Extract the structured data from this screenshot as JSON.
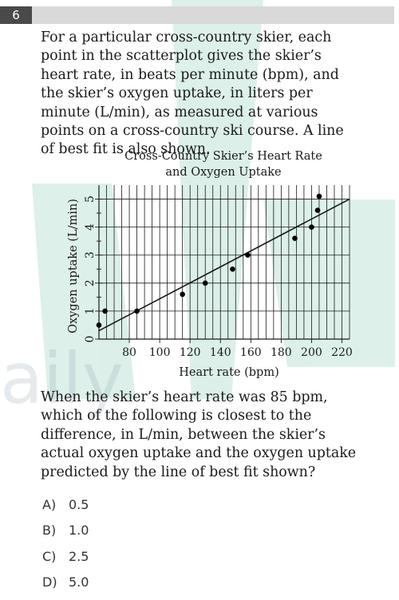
{
  "question_number": "6",
  "stem": "For a particular cross-country skier, each point in the scatterplot gives the skier’s heart rate, in beats per minute (bpm), and the skier’s oxygen uptake, in liters per minute (L/min), as measured at various points on a cross-country ski course. A line of best fit is also shown.",
  "chart_data": {
    "type": "scatter",
    "title_lines": [
      "Cross-Country Skier’s Heart Rate",
      "and Oxygen Uptake"
    ],
    "xlabel": "Heart rate (bpm)",
    "ylabel": "Oxygen uptake (L/min)",
    "x_ticks": [
      "80",
      "100",
      "120",
      "140",
      "160",
      "180",
      "200",
      "220"
    ],
    "y_ticks": [
      "0",
      "1",
      "2",
      "3",
      "4",
      "5"
    ],
    "xlim": [
      60,
      225
    ],
    "ylim": [
      0,
      5.5
    ],
    "grid": true,
    "points": [
      {
        "x": 60,
        "y": 0.5
      },
      {
        "x": 64,
        "y": 1.0
      },
      {
        "x": 85,
        "y": 1.0
      },
      {
        "x": 115,
        "y": 1.6
      },
      {
        "x": 130,
        "y": 2.0
      },
      {
        "x": 148,
        "y": 2.5
      },
      {
        "x": 158,
        "y": 3.0
      },
      {
        "x": 189,
        "y": 3.6
      },
      {
        "x": 200,
        "y": 4.0
      },
      {
        "x": 204,
        "y": 4.6
      },
      {
        "x": 205,
        "y": 5.1
      }
    ],
    "line_of_best_fit": {
      "x": [
        60,
        225
      ],
      "y": [
        0.3,
        5.0
      ]
    }
  },
  "question": "When the skier’s heart rate was 85 bpm, which of the following is closest to the difference, in L/min, between the skier’s actual oxygen uptake and the oxygen uptake predicted by the line of best fit shown?",
  "choices": [
    {
      "letter": "A)",
      "value": "0.5"
    },
    {
      "letter": "B)",
      "value": "1.0"
    },
    {
      "letter": "C)",
      "value": "2.5"
    },
    {
      "letter": "D)",
      "value": "5.0"
    }
  ],
  "watermark": "aily"
}
